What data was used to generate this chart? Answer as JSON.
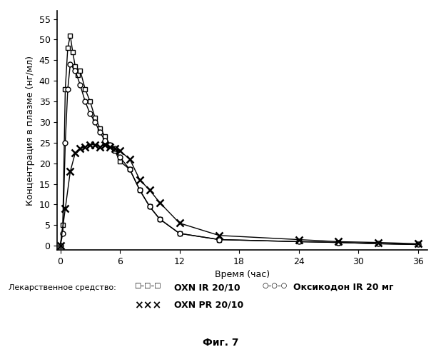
{
  "title": "",
  "xlabel": "Время (час)",
  "ylabel": "Концентрация в плазме (нг/мл)",
  "caption": "Фиг. 7",
  "legend_label": "Лекарственное средство:",
  "series": {
    "OXN_IR": {
      "label": "OXN IR 20/10",
      "x": [
        0,
        0.25,
        0.5,
        0.75,
        1.0,
        1.25,
        1.5,
        1.75,
        2.0,
        2.5,
        3.0,
        3.5,
        4.0,
        4.5,
        5.0,
        5.5,
        6.0,
        7.0,
        8.0,
        9.0,
        10.0,
        12.0,
        16.0,
        24.0,
        28.0,
        32.0,
        36.0
      ],
      "y": [
        0,
        5.0,
        38.0,
        48.0,
        51.0,
        47.0,
        43.5,
        41.5,
        42.5,
        38.0,
        35.0,
        31.0,
        28.5,
        26.5,
        24.5,
        23.0,
        20.5,
        18.5,
        13.5,
        9.5,
        6.5,
        3.0,
        1.5,
        1.0,
        0.8,
        0.5,
        0.3
      ],
      "marker": "s",
      "color": "#000000",
      "linestyle": "-"
    },
    "OXN_PR": {
      "label": "OXN PR 20/10",
      "x": [
        0,
        0.5,
        1.0,
        1.5,
        2.0,
        2.5,
        3.0,
        3.5,
        4.0,
        4.5,
        5.0,
        5.5,
        6.0,
        7.0,
        8.0,
        9.0,
        10.0,
        12.0,
        16.0,
        24.0,
        28.0,
        32.0,
        36.0
      ],
      "y": [
        0,
        9.0,
        18.0,
        22.5,
        23.5,
        24.0,
        24.5,
        24.5,
        24.0,
        24.5,
        24.0,
        23.5,
        23.0,
        21.0,
        16.0,
        13.5,
        10.5,
        5.5,
        2.5,
        1.5,
        1.0,
        0.8,
        0.5
      ],
      "marker": "x",
      "color": "#000000",
      "linestyle": "-"
    },
    "OKS_IR": {
      "label": "Оксикодон IR 20 мг",
      "x": [
        0,
        0.25,
        0.5,
        0.75,
        1.0,
        1.5,
        2.0,
        2.5,
        3.0,
        3.5,
        4.0,
        4.5,
        5.0,
        5.5,
        6.0,
        7.0,
        8.0,
        9.0,
        10.0,
        12.0,
        16.0,
        24.0,
        28.0,
        32.0,
        36.0
      ],
      "y": [
        0,
        3.0,
        25.0,
        38.0,
        44.0,
        42.5,
        39.0,
        35.0,
        32.0,
        30.0,
        27.5,
        25.5,
        24.5,
        23.5,
        21.5,
        18.5,
        13.5,
        9.5,
        6.5,
        3.0,
        1.5,
        1.0,
        0.8,
        0.5,
        0.3
      ],
      "marker": "o",
      "color": "#000000",
      "linestyle": "-"
    }
  },
  "xlim": [
    -0.3,
    37
  ],
  "ylim": [
    -1,
    57
  ],
  "xticks": [
    0,
    6,
    12,
    18,
    24,
    30,
    36
  ],
  "yticks": [
    0,
    5,
    10,
    15,
    20,
    25,
    30,
    35,
    40,
    45,
    50,
    55
  ],
  "background_color": "#ffffff",
  "marker_size": 5,
  "font_family": "DejaVu Sans"
}
